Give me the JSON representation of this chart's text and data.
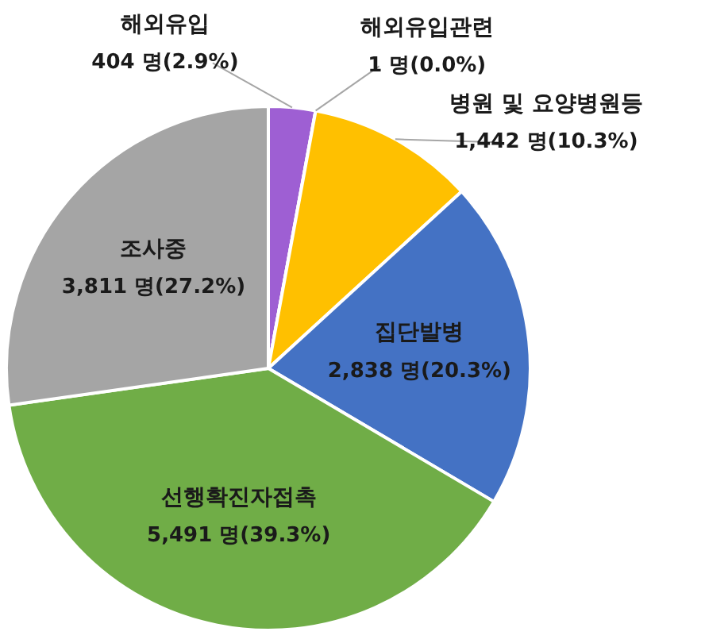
{
  "chart_data": {
    "type": "pie",
    "categories": [
      "해외유입",
      "해외유입관련",
      "병원 및 요양병원등",
      "집단발병",
      "선행확진자접촉",
      "조사중"
    ],
    "values": [
      404,
      1,
      1442,
      2838,
      5491,
      3811
    ],
    "value_labels": [
      "404 명(2.9%)",
      "1 명(0.0%)",
      "1,442 명(10.3%)",
      "2,838 명(20.3%)",
      "5,491 명(39.3%)",
      "3,811 명(27.2%)"
    ],
    "colors": [
      "#9e5fd3",
      "#5b9bd5",
      "#ffc000",
      "#4472c4",
      "#70ad47",
      "#a5a5a5"
    ],
    "legend": false
  }
}
